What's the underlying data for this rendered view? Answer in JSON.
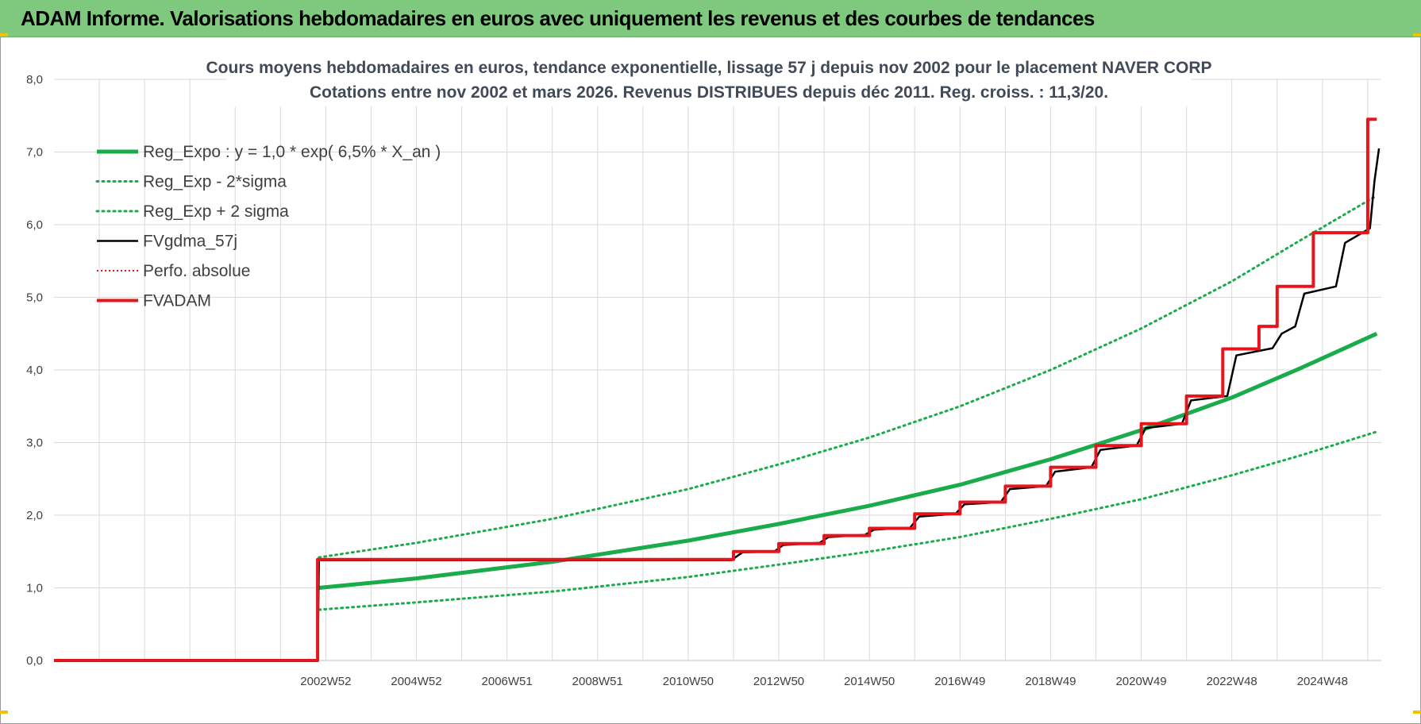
{
  "header": {
    "title": "ADAM Informe. Valorisations hebdomadaires en euros avec uniquement les revenus et des courbes de tendances"
  },
  "colors": {
    "header_bg": "#7ec97e",
    "reg_expo": "#1aab4a",
    "fvgdma": "#000000",
    "fvadam": "#e8141b",
    "perfo": "#e8141b",
    "grid": "#d9d9d9"
  },
  "chart_data": {
    "type": "line",
    "title_line1": "Cours moyens hebdomadaires en euros, tendance exponentielle, lissage 57 j depuis nov 2002  pour le placement NAVER CORP",
    "title_line2": "Cotations entre nov 2002 et mars 2026. Revenus DISTRIBUES depuis déc 2011.  Reg. croiss. : 11,3/20.",
    "ylim": [
      0,
      8
    ],
    "y_ticks": [
      "0,0",
      "1,0",
      "2,0",
      "3,0",
      "4,0",
      "5,0",
      "6,0",
      "7,0",
      "8,0"
    ],
    "x_range": [
      1997.0,
      2026.3
    ],
    "x_ticks": [
      {
        "label": "2002W52",
        "x": 2003.0
      },
      {
        "label": "2004W52",
        "x": 2005.0
      },
      {
        "label": "2006W51",
        "x": 2007.0
      },
      {
        "label": "2008W51",
        "x": 2009.0
      },
      {
        "label": "2010W50",
        "x": 2011.0
      },
      {
        "label": "2012W50",
        "x": 2013.0
      },
      {
        "label": "2014W50",
        "x": 2015.0
      },
      {
        "label": "2016W49",
        "x": 2017.0
      },
      {
        "label": "2018W49",
        "x": 2019.0
      },
      {
        "label": "2020W49",
        "x": 2021.0
      },
      {
        "label": "2022W48",
        "x": 2023.0
      },
      {
        "label": "2024W48",
        "x": 2025.0
      }
    ],
    "legend": [
      {
        "name": "Reg_Expo : y = 1,0 * exp( 6,5% *  X_an )",
        "style": "thick-green"
      },
      {
        "name": "Reg_Exp - 2*sigma",
        "style": "dotted-green"
      },
      {
        "name": "Reg_Exp + 2 sigma",
        "style": "dotted-green"
      },
      {
        "name": "FVgdma_57j",
        "style": "thin-black"
      },
      {
        "name": "Perfo. absolue",
        "style": "dotted-red"
      },
      {
        "name": "FVADAM",
        "style": "thick-red"
      }
    ],
    "legend_position": "top-left",
    "grid": true,
    "series": [
      {
        "name": "Reg_Expo : y = 1,0 * exp( 6,5% *  X_an )",
        "points": [
          [
            2002.85,
            1.0
          ],
          [
            2005,
            1.13
          ],
          [
            2008,
            1.36
          ],
          [
            2011,
            1.65
          ],
          [
            2013,
            1.88
          ],
          [
            2015,
            2.13
          ],
          [
            2017,
            2.42
          ],
          [
            2019,
            2.77
          ],
          [
            2021,
            3.17
          ],
          [
            2023,
            3.62
          ],
          [
            2024.5,
            4.02
          ],
          [
            2026.2,
            4.5
          ]
        ]
      },
      {
        "name": "Reg_Exp - 2*sigma",
        "points": [
          [
            2002.85,
            0.7
          ],
          [
            2005,
            0.8
          ],
          [
            2008,
            0.95
          ],
          [
            2011,
            1.15
          ],
          [
            2013,
            1.32
          ],
          [
            2015,
            1.5
          ],
          [
            2017,
            1.7
          ],
          [
            2019,
            1.95
          ],
          [
            2021,
            2.22
          ],
          [
            2023,
            2.55
          ],
          [
            2024.5,
            2.82
          ],
          [
            2026.2,
            3.15
          ]
        ]
      },
      {
        "name": "Reg_Exp + 2 sigma",
        "points": [
          [
            2002.85,
            1.42
          ],
          [
            2005,
            1.62
          ],
          [
            2008,
            1.95
          ],
          [
            2011,
            2.36
          ],
          [
            2013,
            2.7
          ],
          [
            2015,
            3.07
          ],
          [
            2017,
            3.5
          ],
          [
            2019,
            4.0
          ],
          [
            2021,
            4.57
          ],
          [
            2023,
            5.22
          ],
          [
            2024.5,
            5.78
          ],
          [
            2026.2,
            6.4
          ]
        ]
      },
      {
        "name": "FVgdma_57j",
        "points": [
          [
            1997.0,
            0.0
          ],
          [
            2002.82,
            0.0
          ],
          [
            2002.85,
            1.38
          ],
          [
            2011.95,
            1.38
          ],
          [
            2012.2,
            1.49
          ],
          [
            2012.9,
            1.5
          ],
          [
            2013.1,
            1.59
          ],
          [
            2013.9,
            1.62
          ],
          [
            2014.1,
            1.7
          ],
          [
            2014.9,
            1.73
          ],
          [
            2015.1,
            1.8
          ],
          [
            2015.9,
            1.83
          ],
          [
            2016.1,
            1.98
          ],
          [
            2016.9,
            2.02
          ],
          [
            2017.1,
            2.15
          ],
          [
            2017.9,
            2.18
          ],
          [
            2018.1,
            2.36
          ],
          [
            2018.9,
            2.4
          ],
          [
            2019.1,
            2.6
          ],
          [
            2019.9,
            2.66
          ],
          [
            2020.1,
            2.9
          ],
          [
            2020.9,
            2.96
          ],
          [
            2021.1,
            3.2
          ],
          [
            2021.9,
            3.26
          ],
          [
            2022.1,
            3.58
          ],
          [
            2022.9,
            3.64
          ],
          [
            2023.1,
            4.2
          ],
          [
            2023.9,
            4.3
          ],
          [
            2024.1,
            4.5
          ],
          [
            2024.4,
            4.6
          ],
          [
            2024.6,
            5.05
          ],
          [
            2025.3,
            5.15
          ],
          [
            2025.5,
            5.75
          ],
          [
            2026.05,
            5.95
          ],
          [
            2026.15,
            6.6
          ],
          [
            2026.25,
            7.05
          ]
        ]
      },
      {
        "name": "FVADAM",
        "points": [
          [
            1997.0,
            0.0
          ],
          [
            2002.82,
            0.0
          ],
          [
            2002.82,
            1.39
          ],
          [
            2012.0,
            1.39
          ],
          [
            2012.0,
            1.5
          ],
          [
            2013.0,
            1.5
          ],
          [
            2013.0,
            1.61
          ],
          [
            2014.0,
            1.61
          ],
          [
            2014.0,
            1.72
          ],
          [
            2015.0,
            1.72
          ],
          [
            2015.0,
            1.82
          ],
          [
            2016.0,
            1.82
          ],
          [
            2016.0,
            2.02
          ],
          [
            2017.0,
            2.02
          ],
          [
            2017.0,
            2.18
          ],
          [
            2018.0,
            2.18
          ],
          [
            2018.0,
            2.4
          ],
          [
            2019.0,
            2.4
          ],
          [
            2019.0,
            2.66
          ],
          [
            2020.0,
            2.66
          ],
          [
            2020.0,
            2.96
          ],
          [
            2021.0,
            2.96
          ],
          [
            2021.0,
            3.26
          ],
          [
            2022.0,
            3.26
          ],
          [
            2022.0,
            3.64
          ],
          [
            2022.8,
            3.64
          ],
          [
            2022.8,
            4.29
          ],
          [
            2023.6,
            4.29
          ],
          [
            2023.6,
            4.6
          ],
          [
            2024.0,
            4.6
          ],
          [
            2024.0,
            5.15
          ],
          [
            2024.8,
            5.15
          ],
          [
            2024.8,
            5.89
          ],
          [
            2026.0,
            5.89
          ],
          [
            2026.0,
            7.45
          ],
          [
            2026.2,
            7.45
          ]
        ]
      }
    ]
  }
}
